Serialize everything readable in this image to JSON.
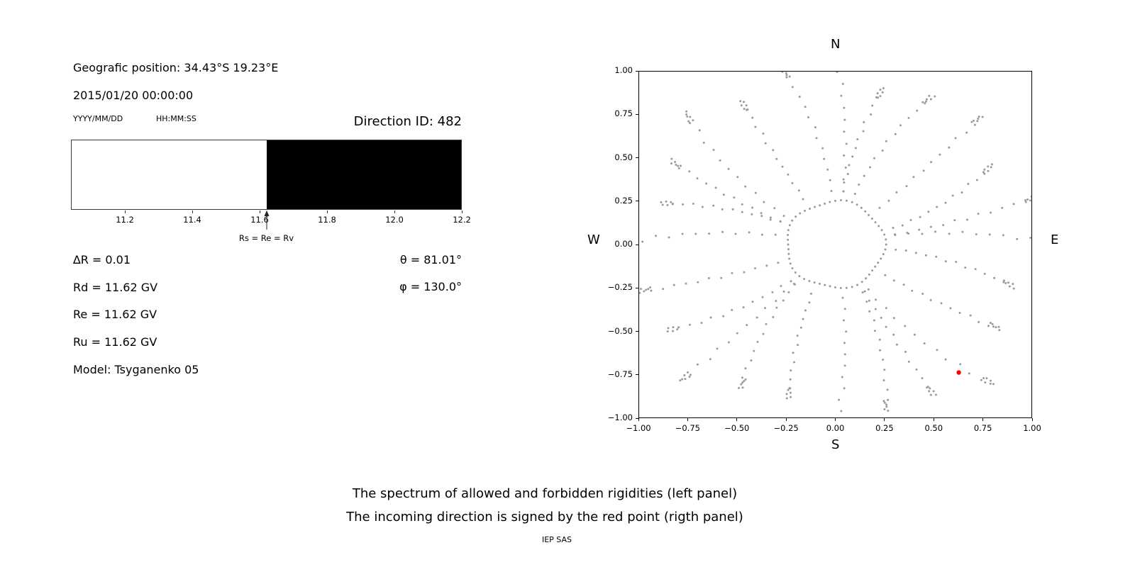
{
  "left_panel": {
    "position": "Geografic position: 34.43°S 19.23°E",
    "datetime": "2015/01/20 00:00:00",
    "date_format_label": "YYYY/MM/DD",
    "time_format_label": "HH:MM:SS",
    "direction_id": "Direction ID: 482",
    "spectrum": {
      "axis_min": 11.04,
      "axis_max": 12.2,
      "ticks": [
        11.2,
        11.4,
        11.6,
        11.8,
        12.0,
        12.2
      ],
      "tick_labels": [
        "11.2",
        "11.4",
        "11.6",
        "11.8",
        "12.0",
        "12.2"
      ],
      "cutoff": 11.62,
      "allowed_color": "#ffffff",
      "forbidden_color": "#000000",
      "arrow_label": "Rs = Re = Rv"
    },
    "parameters": {
      "delta_r": "∆R = 0.01",
      "rd": "Rd = 11.62 GV",
      "re": "Re = 11.62 GV",
      "ru": "Ru = 11.62 GV",
      "model": "Model: Tsyganenko 05",
      "theta": "θ = 81.01°",
      "phi": "φ = 130.0°"
    }
  },
  "chart_data": {
    "type": "scatter",
    "xlim": [
      -1.0,
      1.0
    ],
    "ylim": [
      -1.0,
      1.0
    ],
    "x_ticks": [
      -1.0,
      -0.75,
      -0.5,
      -0.25,
      0.0,
      0.25,
      0.5,
      0.75,
      1.0
    ],
    "x_tick_labels": [
      "−1.00",
      "−0.75",
      "−0.50",
      "−0.25",
      "0.00",
      "0.25",
      "0.50",
      "0.75",
      "1.00"
    ],
    "y_ticks": [
      1.0,
      0.75,
      0.5,
      0.25,
      0.0,
      -0.25,
      -0.5,
      -0.75,
      -1.0
    ],
    "y_tick_labels": [
      "1.00",
      "0.75",
      "0.50",
      "0.25",
      "0.00",
      "−0.25",
      "−0.50",
      "−0.75",
      "−1.00"
    ],
    "compass_labels": {
      "top": "N",
      "bottom": "S",
      "left": "W",
      "right": "E"
    },
    "grid": false,
    "marker_color": "#9a9a9a",
    "red_point": {
      "x": 0.63,
      "y": -0.74,
      "color": "#ff0000"
    },
    "spokes": {
      "count": 24,
      "inner_radius": 0.31,
      "outer_radius_base": 1.02,
      "trail_points": 12,
      "cluster_points": 5
    },
    "inner_ring": {
      "radius": 0.25,
      "count": 56
    }
  },
  "captions": {
    "line1": "The spectrum of allowed and forbidden rigidities (left panel)",
    "line2": "The incoming direction is signed by the red point (rigth panel)",
    "credit": "IEP SAS"
  }
}
